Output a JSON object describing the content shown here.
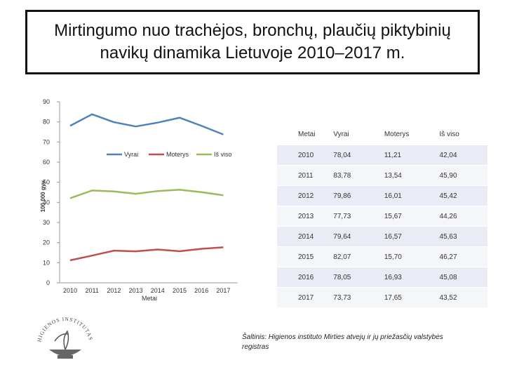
{
  "title": "Mirtingumo nuo trachėjos, bronchų, plaučių piktybinių navikų dinamika Lietuvoje 2010–2017 m.",
  "chart_data": {
    "type": "line",
    "x": [
      "2010",
      "2011",
      "2012",
      "2013",
      "2014",
      "2015",
      "2016",
      "2017"
    ],
    "series": [
      {
        "name": "Vyrai",
        "values": [
          78.04,
          83.78,
          79.86,
          77.73,
          79.64,
          82.07,
          78.05,
          73.73
        ],
        "color": "#4f81bd"
      },
      {
        "name": "Moterys",
        "values": [
          11.21,
          13.54,
          16.01,
          15.67,
          16.57,
          15.7,
          16.93,
          17.65
        ],
        "color": "#c0504d"
      },
      {
        "name": "Iš viso",
        "values": [
          42.04,
          45.9,
          45.42,
          44.26,
          45.63,
          46.27,
          45.08,
          43.52
        ],
        "color": "#9bbb59"
      }
    ],
    "yticks": [
      "0",
      "10",
      "20",
      "30",
      "40",
      "50",
      "60",
      "70",
      "80",
      "90"
    ],
    "ylim": [
      0,
      90
    ],
    "xlabel": "Metai",
    "ylabel": "100 000 gyv.",
    "legend_position": "top-center"
  },
  "table": {
    "headers": [
      "Metai",
      "Vyrai",
      "Moterys",
      "Iš viso"
    ],
    "rows": [
      [
        "2010",
        "78,04",
        "11,21",
        "42,04"
      ],
      [
        "2011",
        "83,78",
        "13,54",
        "45,90"
      ],
      [
        "2012",
        "79,86",
        "16,01",
        "45,42"
      ],
      [
        "2013",
        "77,73",
        "15,67",
        "44,26"
      ],
      [
        "2014",
        "79,64",
        "16,57",
        "45,63"
      ],
      [
        "2015",
        "82,07",
        "15,70",
        "46,27"
      ],
      [
        "2016",
        "78,05",
        "16,93",
        "45,08"
      ],
      [
        "2017",
        "73,73",
        "17,65",
        "43,52"
      ]
    ]
  },
  "source": "Šaltinis: Higienos instituto Mirties atvejų ir jų priežasčių valstybės registras",
  "logo_text": "HIGIENOS INSTITUTAS"
}
